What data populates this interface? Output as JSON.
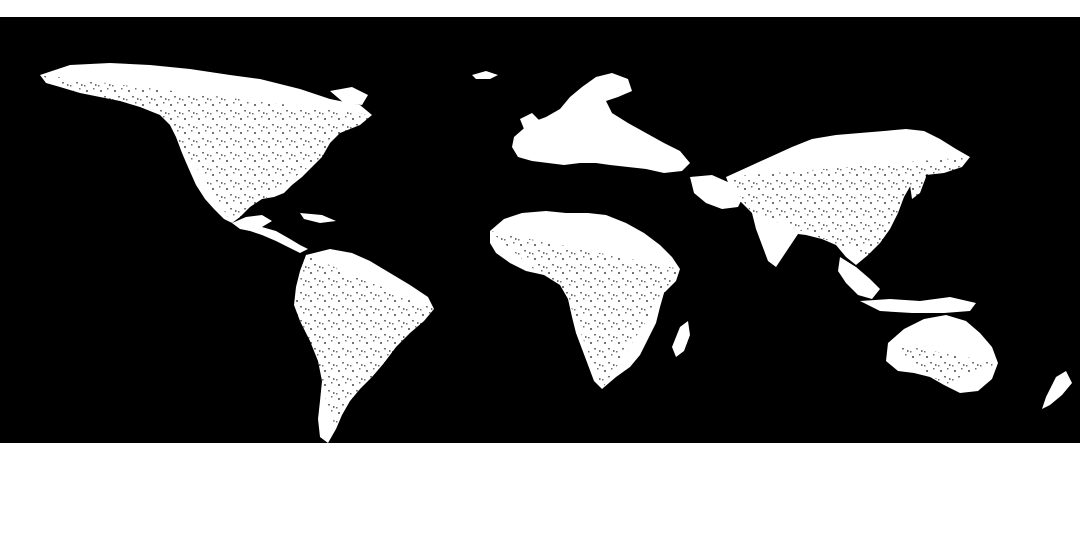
{
  "page": {
    "background_color": "#ffffff"
  },
  "map": {
    "type": "binary land-cover mask (world, equirectangular)",
    "background_color": "#000000",
    "land_color": "#ffffff",
    "visible_text": "",
    "regions": [
      "north-america",
      "greenland",
      "central-america",
      "south-america",
      "europe",
      "africa",
      "madagascar",
      "asia",
      "indian-subcontinent",
      "southeast-asia",
      "japan",
      "australia",
      "new-zealand",
      "iceland"
    ]
  }
}
